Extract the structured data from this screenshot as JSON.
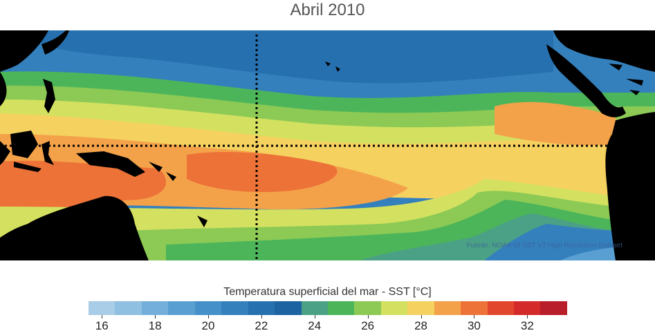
{
  "title": "Abril 2010",
  "source": "Fuente: NOAA OI SST V2 High Resolution Dataset",
  "colorbar": {
    "title": "Temperatura superficial del mar - SST  [°C]",
    "colors": [
      "#a9cde6",
      "#8fbfe1",
      "#73afda",
      "#5a9fd2",
      "#4590c8",
      "#3480bd",
      "#2670b0",
      "#1d62a1",
      "#4aa185",
      "#4cb55a",
      "#8cca55",
      "#d4e160",
      "#f5d160",
      "#f4a24a",
      "#ec7237",
      "#e2472e",
      "#d52a2a",
      "#b81f2a"
    ],
    "range": [
      15.5,
      33.5
    ],
    "ticks": [
      "16",
      "18",
      "20",
      "22",
      "24",
      "26",
      "28",
      "30",
      "32"
    ],
    "tick_values": [
      16,
      18,
      20,
      22,
      24,
      26,
      28,
      30,
      32
    ]
  }
}
